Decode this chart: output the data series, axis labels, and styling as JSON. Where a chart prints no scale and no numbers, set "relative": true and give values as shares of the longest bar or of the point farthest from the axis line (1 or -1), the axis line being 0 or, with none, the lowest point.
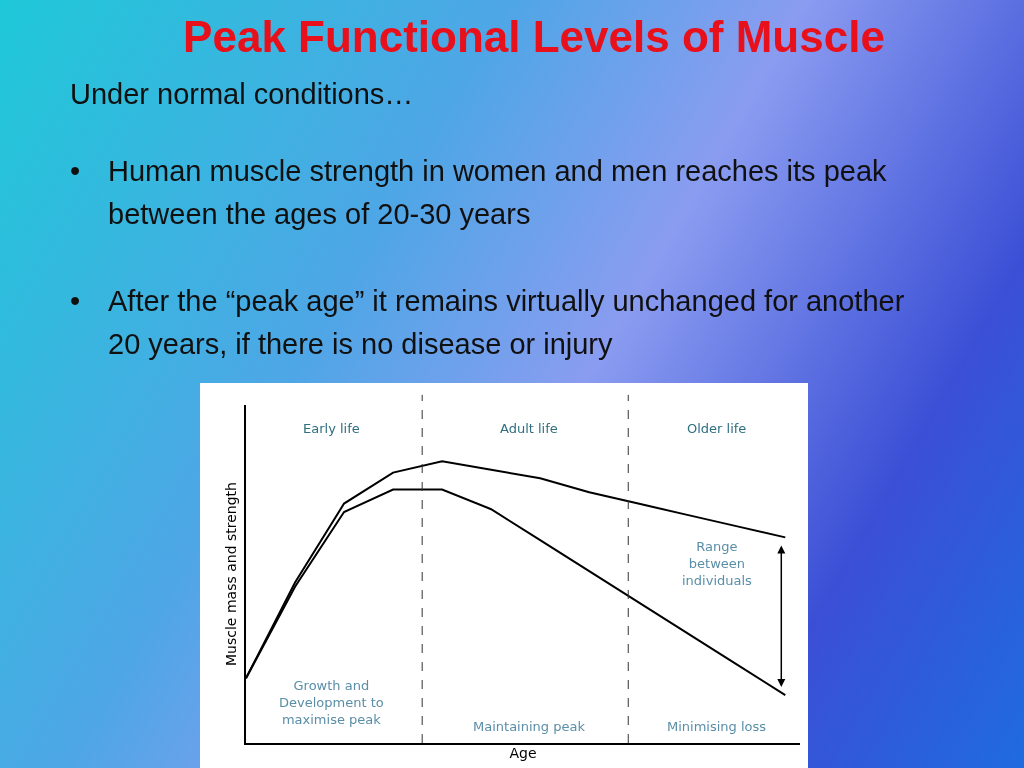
{
  "chart_data": {
    "type": "line",
    "title": "Peak Functional Levels of Muscle",
    "subtitle": "Under normal conditions…",
    "xlabel": "Age",
    "ylabel": "Muscle mass and strength",
    "relative": true,
    "categories": [
      null,
      null,
      null,
      null,
      null,
      null,
      null,
      null,
      null,
      null,
      null,
      null
    ],
    "grid": false,
    "marker": "none",
    "line_style": "solid",
    "series": [
      {
        "color": "#000000",
        "values": [
          0.23,
          0.57,
          0.85,
          0.96,
          1.0,
          0.97,
          0.94,
          0.89,
          0.85,
          0.81,
          0.77,
          0.73
        ]
      },
      {
        "color": "#000000",
        "values": [
          0.23,
          0.555,
          0.82,
          0.9,
          0.9,
          0.83,
          0.72,
          0.61,
          0.5,
          0.39,
          0.28,
          0.17
        ]
      }
    ],
    "annotations": [
      "• Human muscle strength in women and men reaches its peak between the ages of 20-30 years",
      "• After the “peak age” it remains virtually unchanged for another 20 years, if there is no disease or injury",
      "Early life",
      "Adult life",
      "Older life",
      "Growth and\nDevelopment to\nmaximise peak",
      "Maintaining peak",
      "Minimising loss",
      "Range\nbetween\nindividuals"
    ]
  }
}
